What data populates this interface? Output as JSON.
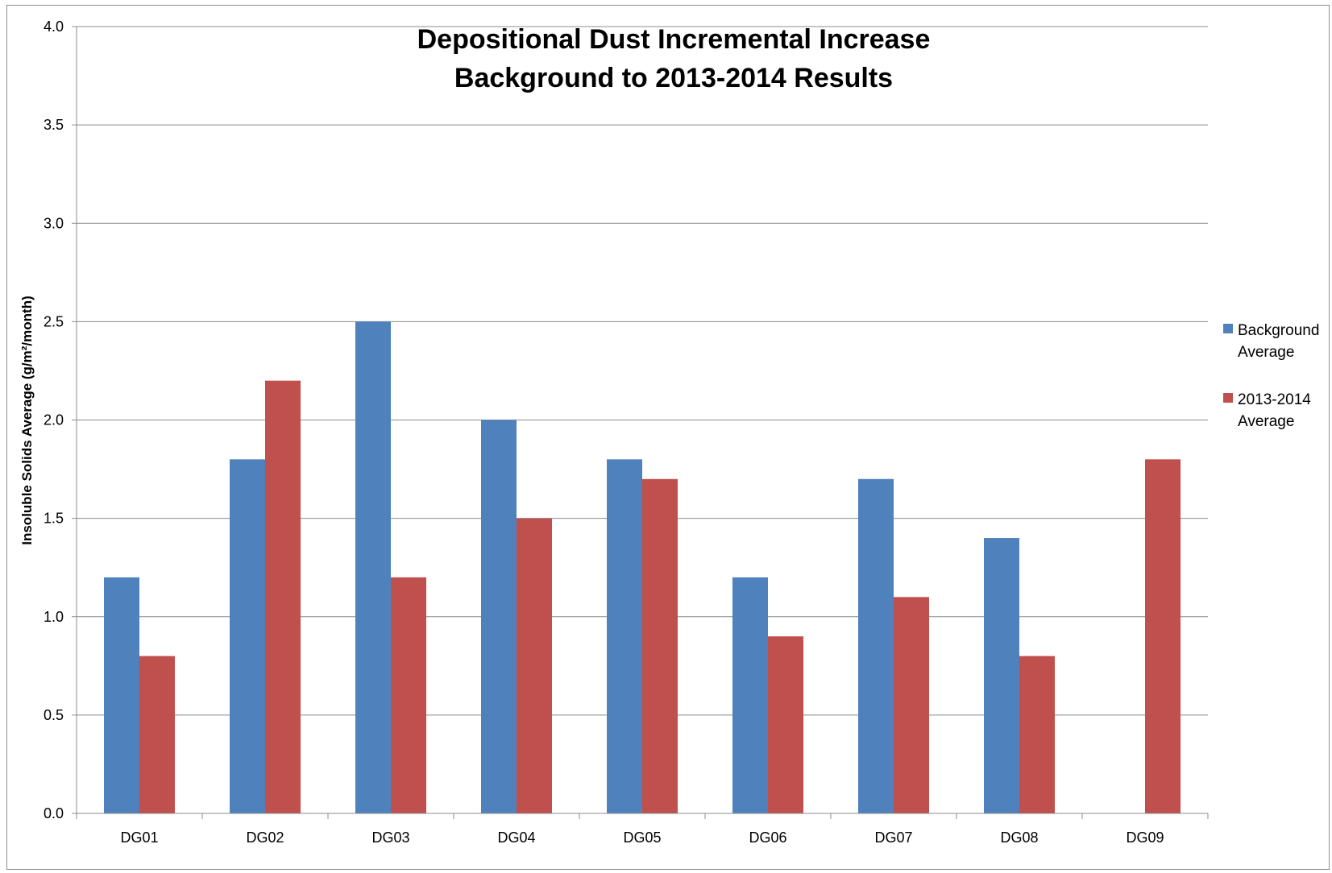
{
  "chart_data": {
    "type": "bar",
    "title_lines": [
      "Depositional Dust Incremental Increase",
      "Background to 2013-2014 Results"
    ],
    "xlabel": "",
    "ylabel": "Insoluble Solids Average (g/m²/month)",
    "ylim": [
      0,
      4.0
    ],
    "yticks": [
      "0.0",
      "0.5",
      "1.0",
      "1.5",
      "2.0",
      "2.5",
      "3.0",
      "3.5",
      "4.0"
    ],
    "grid": true,
    "legend_position": "right",
    "categories": [
      "DG01",
      "DG02",
      "DG03",
      "DG04",
      "DG05",
      "DG06",
      "DG07",
      "DG08",
      "DG09"
    ],
    "series": [
      {
        "name_lines": [
          "Background",
          "Average"
        ],
        "color": "#4f81bd",
        "values": [
          1.2,
          1.8,
          2.5,
          2.0,
          1.8,
          1.2,
          1.7,
          1.4,
          null
        ]
      },
      {
        "name_lines": [
          "2013-2014",
          "Average"
        ],
        "color": "#c0504d",
        "values": [
          0.8,
          2.2,
          1.2,
          1.5,
          1.7,
          0.9,
          1.1,
          0.8,
          1.8
        ]
      }
    ]
  }
}
